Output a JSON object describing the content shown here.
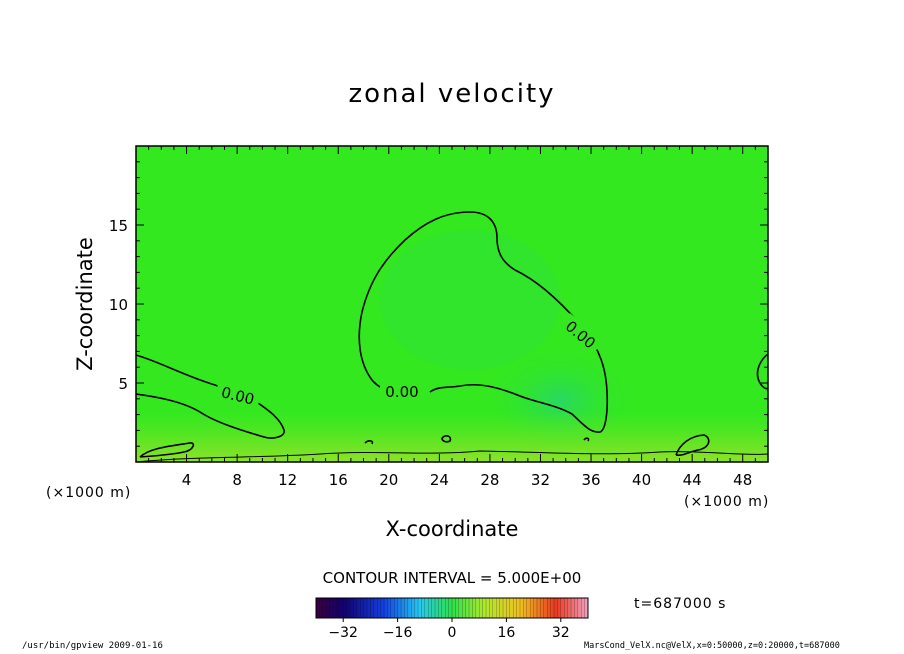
{
  "chart_data": {
    "type": "heatmap",
    "title": "zonal velocity",
    "xlabel": "X-coordinate",
    "ylabel": "Z-coordinate",
    "x_unit_left": "(×1000 m)",
    "x_unit_right": "(×1000 m)",
    "xlim": [
      0,
      50
    ],
    "ylim": [
      0,
      20
    ],
    "x_ticks": [
      4,
      8,
      12,
      16,
      20,
      24,
      28,
      32,
      36,
      40,
      44,
      48
    ],
    "y_ticks": [
      5,
      10,
      15
    ],
    "contour_interval_label": "CONTOUR INTERVAL = 5.000E+00",
    "contour_labels": [
      "0.00",
      "0.00",
      "0.00"
    ],
    "colorbar": {
      "range": [
        -40,
        40
      ],
      "ticks": [
        -32,
        -16,
        0,
        16,
        32
      ]
    },
    "time_label": "t=687000 s",
    "background_color": "#33e81f"
  },
  "footer": {
    "left": "/usr/bin/gpview   2009-01-16",
    "right": "MarsCond_VelX.nc@VelX,x=0:50000,z=0:20000,t=687000"
  }
}
